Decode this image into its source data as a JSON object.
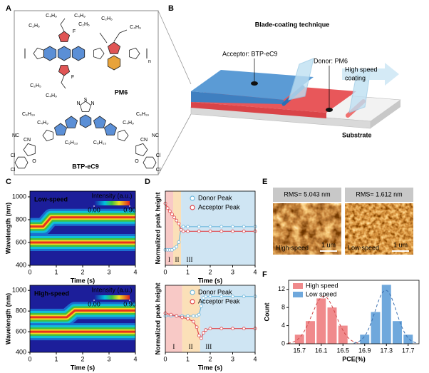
{
  "panels": [
    "A",
    "B",
    "C",
    "D",
    "E",
    "F"
  ],
  "structures": {
    "pm6": {
      "name": "PM6",
      "labels": [
        "C₄H₉",
        "C₂H₅",
        "F",
        "C₂H₅",
        "C₄H₉",
        "C₂H₅",
        "C₄H₉",
        "F",
        "C₂H₅",
        "C₄H₉",
        "n"
      ]
    },
    "btp": {
      "name": "BTP-eC9",
      "labels": [
        "N",
        "S",
        "N",
        "C₉H₁₉",
        "C₉H₁₉",
        "C₄H₉",
        "C₆H₁₃",
        "C₆H₁₃",
        "C₄H₉",
        "NC",
        "CN",
        "CN",
        "NC",
        "Cl",
        "Cl",
        "Cl",
        "Cl",
        "O",
        "O"
      ]
    }
  },
  "diagram": {
    "title": "Blade-coating technique",
    "acceptor": "Acceptor: BTP-eC9",
    "donor": "Donor: PM6",
    "coating": [
      "High speed",
      "coating"
    ],
    "substrate": "Substrate"
  },
  "chart_data": [
    {
      "type": "heatmap",
      "title": "Low-speed",
      "xlabel": "Time (s)",
      "ylabel": "Wavelength (nm)",
      "xlim": [
        0,
        4
      ],
      "xticks": [
        0,
        1,
        2,
        3,
        4
      ],
      "ylim": [
        400,
        1050
      ],
      "yticks": [
        400,
        600,
        800,
        1000
      ],
      "x": [
        0,
        0.5,
        0.8,
        4
      ],
      "bands": [
        {
          "values": [
            740,
            740,
            820,
            820
          ]
        },
        {
          "values": [
            600,
            600,
            600,
            600
          ]
        }
      ],
      "colorbar": {
        "label": "Intensity (a.u.)",
        "ticks": [
          {
            "value": 0,
            "label": "0.00"
          },
          {
            "value": 0.9,
            "label": "0.90"
          }
        ]
      }
    },
    {
      "type": "heatmap",
      "title": "High-speed",
      "xlabel": "Time (s)",
      "ylabel": "Wavelength (nm)",
      "xlim": [
        0,
        4
      ],
      "xticks": [
        0,
        1,
        2,
        3,
        4
      ],
      "ylim": [
        400,
        1050
      ],
      "yticks": [
        400,
        600,
        800,
        1000
      ],
      "x": [
        0,
        1.4,
        1.7,
        4
      ],
      "bands": [
        {
          "values": [
            740,
            740,
            805,
            805
          ]
        },
        {
          "values": [
            600,
            600,
            600,
            600
          ]
        }
      ],
      "colorbar": {
        "label": "Intensity (a.u.)",
        "ticks": [
          {
            "value": 0,
            "label": "0.00"
          },
          {
            "value": 0.9,
            "label": "0.90"
          }
        ]
      }
    },
    {
      "type": "line",
      "ylabel": "Normalized peak height",
      "xlabel": "Time (s)",
      "xlim": [
        0,
        4
      ],
      "xticks": [
        0,
        1,
        2,
        3,
        4
      ],
      "ylim": [
        0.6,
        1.08
      ],
      "x": [
        0,
        0.1,
        0.2,
        0.3,
        0.4,
        0.5,
        0.6,
        0.7,
        0.8,
        1,
        1.5,
        2,
        2.5,
        3,
        3.5,
        4
      ],
      "regions": [
        {
          "label": "I",
          "from": 0,
          "to": 0.35,
          "color": "#f8c9c6"
        },
        {
          "label": "II",
          "from": 0.35,
          "to": 0.7,
          "color": "#fbe0b8"
        },
        {
          "label": "III",
          "from": 0.7,
          "to": 4,
          "color": "#cfe5f3"
        }
      ],
      "series": [
        {
          "name": "Donor Peak",
          "color": "#6fb8dd",
          "values": [
            0.7,
            0.7,
            0.7,
            0.7,
            0.71,
            0.72,
            0.75,
            0.84,
            0.85,
            0.85,
            0.85,
            0.85,
            0.85,
            0.85,
            0.85,
            0.85
          ]
        },
        {
          "name": "Acceptor Peak",
          "color": "#e0474c",
          "values": [
            1.0,
            0.97,
            0.95,
            0.93,
            0.91,
            0.89,
            0.87,
            0.83,
            0.82,
            0.82,
            0.82,
            0.82,
            0.82,
            0.82,
            0.82,
            0.82
          ]
        }
      ]
    },
    {
      "type": "line",
      "ylabel": "Normalized peak height",
      "xlabel": "Time (s)",
      "xlim": [
        0,
        4
      ],
      "xticks": [
        0,
        1,
        2,
        3,
        4
      ],
      "ylim": [
        0.6,
        1.08
      ],
      "x": [
        0,
        0.25,
        0.5,
        0.75,
        1,
        1.25,
        1.4,
        1.5,
        1.6,
        1.7,
        1.8,
        2,
        2.5,
        3,
        3.5,
        4
      ],
      "regions": [
        {
          "label": "I",
          "from": 0,
          "to": 0.75,
          "color": "#f8c9c6"
        },
        {
          "label": "II",
          "from": 0.75,
          "to": 1.55,
          "color": "#fbe0b8"
        },
        {
          "label": "III",
          "from": 1.55,
          "to": 4,
          "color": "#cfe5f3"
        }
      ],
      "series": [
        {
          "name": "Donor Peak",
          "color": "#6fb8dd",
          "values": [
            0.86,
            0.86,
            0.86,
            0.86,
            0.86,
            0.86,
            0.86,
            0.87,
            0.93,
            0.99,
            1.0,
            1.0,
            1.0,
            1.0,
            1.0,
            1.0
          ]
        },
        {
          "name": "Acceptor Peak",
          "color": "#e0474c",
          "values": [
            0.88,
            0.87,
            0.86,
            0.85,
            0.84,
            0.82,
            0.78,
            0.72,
            0.7,
            0.74,
            0.76,
            0.77,
            0.77,
            0.77,
            0.77,
            0.77
          ]
        }
      ]
    },
    {
      "type": "bar",
      "xlabel": "PCE(%)",
      "ylabel": "Count",
      "xlim": [
        15.5,
        17.9
      ],
      "xticks": [
        15.7,
        16.1,
        16.5,
        16.9,
        17.3,
        17.7
      ],
      "ylim": [
        0,
        14
      ],
      "yticks": [
        0,
        4,
        8,
        12
      ],
      "series": [
        {
          "name": "High speed",
          "color": "#f08a8c",
          "x": [
            15.7,
            15.9,
            16.1,
            16.3,
            16.5
          ],
          "values": [
            2,
            5,
            10,
            8,
            4
          ]
        },
        {
          "name": "Low speed",
          "color": "#6fa8dc",
          "x": [
            16.9,
            17.1,
            17.3,
            17.5,
            17.7
          ],
          "values": [
            2,
            7,
            13,
            5,
            2
          ]
        }
      ]
    }
  ],
  "afm": [
    {
      "rms": "RMS= 5.043 nm",
      "label": "High-speed",
      "scale": "1 um"
    },
    {
      "rms": "RMS= 1.612 nm",
      "label": "Low-speed",
      "scale": "1 um"
    }
  ]
}
